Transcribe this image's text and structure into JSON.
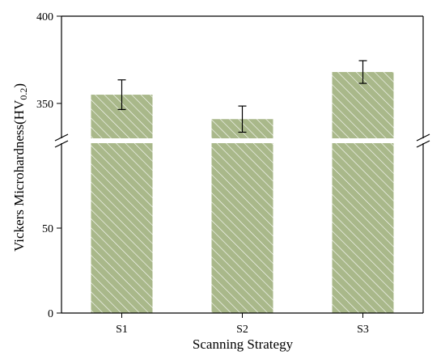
{
  "chart_data": {
    "type": "bar",
    "xlabel": "Scanning Strategy",
    "ylabel_main": "Vickers Microhardness(HV",
    "ylabel_sub": "0.2",
    "ylabel_close": ")",
    "categories": [
      "S1",
      "S2",
      "S3"
    ],
    "values": [
      355,
      341,
      368
    ],
    "errors": [
      8.5,
      7.5,
      6.5
    ],
    "y_axis_break": true,
    "ylim_lower": [
      0,
      100
    ],
    "ylim_upper": [
      330,
      400
    ],
    "yticks_lower": [
      0,
      50
    ],
    "yticks_upper": [
      350,
      400
    ],
    "ytick_labels_lower": [
      "0",
      "50"
    ],
    "ytick_labels_upper": [
      "350",
      "400"
    ],
    "grid": false,
    "bar_color": "#a9b88a",
    "hatch_color": "#ffffff"
  }
}
